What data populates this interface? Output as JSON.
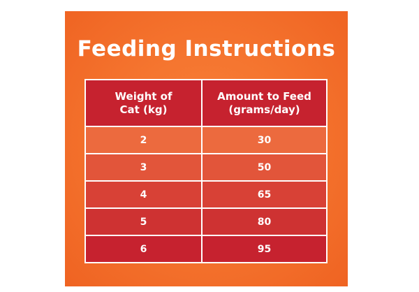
{
  "title": "Feeding Instructions",
  "table": {
    "headers": [
      "Weight of\nCat (kg)",
      "Amount to Feed\n(grams/day)"
    ],
    "rows": [
      [
        "2",
        "30"
      ],
      [
        "3",
        "50"
      ],
      [
        "4",
        "65"
      ],
      [
        "5",
        "80"
      ],
      [
        "6",
        "95"
      ]
    ]
  },
  "colors": {
    "background": "#f5752f",
    "header": "#c6222f",
    "row_gradient": [
      "#ec6a3e",
      "#e2553a",
      "#d84136",
      "#ce3232",
      "#c6222f"
    ],
    "text": "#ffffff"
  }
}
